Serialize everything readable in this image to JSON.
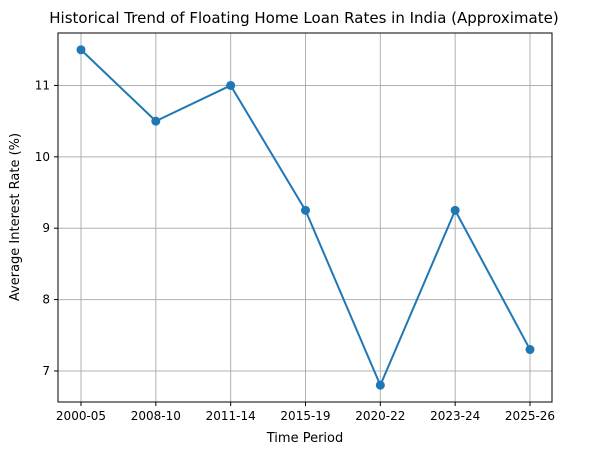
{
  "chart_data": {
    "type": "line",
    "title": "Historical Trend of Floating Home Loan Rates in India (Approximate)",
    "xlabel": "Time Period",
    "ylabel": "Average Interest Rate (%)",
    "categories": [
      "2000-05",
      "2008-10",
      "2011-14",
      "2015-19",
      "2020-22",
      "2023-24",
      "2025-26"
    ],
    "series": [
      {
        "values": [
          11.5,
          10.5,
          11.0,
          9.25,
          6.8,
          9.25,
          7.3
        ]
      }
    ],
    "yticks": [
      7,
      8,
      9,
      10,
      11
    ],
    "ylim": [
      6.565,
      11.735
    ],
    "grid": true,
    "line_color": "#1f77b4",
    "marker": "circle"
  }
}
